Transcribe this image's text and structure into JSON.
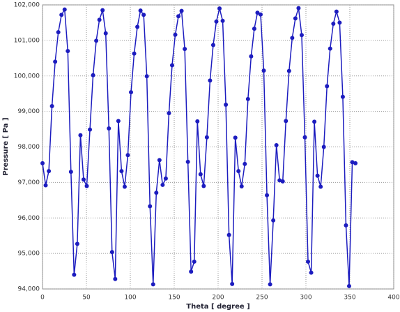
{
  "chart_data": {
    "type": "line",
    "x_label": "Theta [ degree ]",
    "y_label": "Pressure [ Pa ]",
    "x": [
      0,
      3.6,
      7.2,
      10.8,
      14.4,
      18,
      21.6,
      25.2,
      28.8,
      32.4,
      36,
      39.6,
      43.2,
      46.8,
      50.4,
      54,
      57.6,
      61.2,
      64.8,
      68.4,
      72,
      75.6,
      79.2,
      82.8,
      86.4,
      90,
      93.6,
      97.2,
      100.8,
      104.4,
      108,
      111.6,
      115.2,
      118.8,
      122.4,
      126,
      129.6,
      133.2,
      136.8,
      140.4,
      144,
      147.6,
      151.2,
      154.8,
      158.4,
      162,
      165.6,
      169.2,
      172.8,
      176.4,
      180,
      183.6,
      187.2,
      190.8,
      194.4,
      198,
      201.6,
      205.2,
      208.8,
      212.4,
      216,
      219.6,
      223.2,
      226.8,
      230.4,
      234,
      237.6,
      241.2,
      244.8,
      248.4,
      252,
      255.6,
      259.2,
      262.8,
      266.4,
      270,
      273.6,
      277.2,
      280.8,
      284.4,
      288,
      291.6,
      295.2,
      298.8,
      302.4,
      306,
      309.6,
      313.2,
      316.8,
      320.4,
      324,
      327.6,
      331.2,
      334.8,
      338.4,
      342,
      345.6,
      349.2,
      352.8,
      356.4
    ],
    "values": [
      97540,
      96920,
      97320,
      99150,
      100400,
      101230,
      101720,
      101870,
      100700,
      97300,
      94400,
      95270,
      98330,
      97080,
      96900,
      98490,
      100020,
      100990,
      101580,
      101850,
      101200,
      98520,
      95040,
      94280,
      98730,
      97320,
      96880,
      97770,
      99540,
      100630,
      101380,
      101840,
      101720,
      99990,
      96330,
      94130,
      96710,
      97630,
      96930,
      97110,
      98950,
      100300,
      101160,
      101680,
      101830,
      100760,
      97580,
      94490,
      94770,
      98720,
      97230,
      96900,
      98270,
      99870,
      100870,
      101530,
      101900,
      101550,
      99190,
      95520,
      94140,
      98260,
      97320,
      96890,
      97520,
      99350,
      100550,
      101330,
      101780,
      101730,
      100150,
      96640,
      94130,
      95930,
      98050,
      97060,
      97030,
      98730,
      100140,
      101070,
      101620,
      101910,
      101150,
      98270,
      94770,
      94460,
      98710,
      97190,
      96880,
      98000,
      99710,
      100770,
      101470,
      101810,
      101500,
      99410,
      95790,
      94080,
      97570,
      97540
    ],
    "color": "#1c1cbf",
    "xlim": [
      0,
      400
    ],
    "xticks": [
      0,
      50,
      100,
      150,
      200,
      250,
      300,
      350,
      400
    ],
    "ylim": [
      94000,
      102000
    ],
    "yticks": [
      {
        "value": 94000,
        "label": "94,000"
      },
      {
        "value": 95000,
        "label": "95,000"
      },
      {
        "value": 96000,
        "label": "96,000"
      },
      {
        "value": 97000,
        "label": "97,000"
      },
      {
        "value": 98000,
        "label": "98,000"
      },
      {
        "value": 99000,
        "label": "99,000"
      },
      {
        "value": 100000,
        "label": "100,000"
      },
      {
        "value": 101000,
        "label": "101,000"
      },
      {
        "value": 102000,
        "label": "102,000"
      }
    ],
    "grid": true
  }
}
